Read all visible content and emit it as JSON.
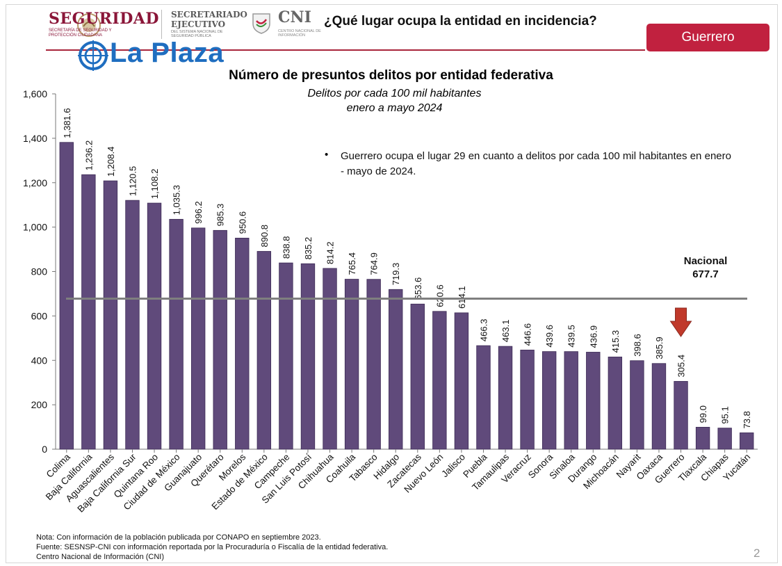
{
  "header": {
    "seguridad_title": "SEGURIDAD",
    "seguridad_subtitle": "SECRETARÍA DE SEGURIDAD Y PROTECCIÓN CIUDADANA",
    "sesnsp_title_line1": "SECRETARIADO",
    "sesnsp_title_line2": "EJECUTIVO",
    "sesnsp_subtitle": "DEL SISTEMA NACIONAL DE SEGURIDAD PÚBLICA",
    "cni_title": "CNI",
    "cni_subtitle": "CENTRO NACIONAL DE INFORMACIÓN",
    "question": "¿Qué lugar ocupa la entidad en incidencia?",
    "state_badge": "Guerrero",
    "watermark": "La Plaza",
    "accent_color": "#c1213f",
    "brand_color": "#8a1538"
  },
  "chart_data": {
    "type": "bar",
    "title": "Número de presuntos delitos por entidad federativa",
    "subtitle_line1": "Delitos por cada 100 mil habitantes",
    "subtitle_line2": "enero a mayo 2024",
    "categories": [
      "Colima",
      "Baja California",
      "Aguascalientes",
      "Baja California Sur",
      "Quintana Roo",
      "Ciudad de México",
      "Guanajuato",
      "Querétaro",
      "Morelos",
      "Estado de México",
      "Campeche",
      "San Luis Potosí",
      "Chihuahua",
      "Coahuila",
      "Tabasco",
      "Hidalgo",
      "Zacatecas",
      "Nuevo León",
      "Jalisco",
      "Puebla",
      "Tamaulipas",
      "Veracruz",
      "Sonora",
      "Sinaloa",
      "Durango",
      "Michoacán",
      "Nayarit",
      "Oaxaca",
      "Guerrero",
      "Tlaxcala",
      "Chiapas",
      "Yucatán"
    ],
    "values": [
      1381.6,
      1236.2,
      1208.4,
      1120.5,
      1108.2,
      1035.3,
      996.2,
      985.3,
      950.6,
      890.8,
      838.8,
      835.2,
      814.2,
      765.4,
      764.9,
      719.3,
      653.6,
      620.6,
      614.1,
      466.3,
      463.1,
      446.6,
      439.6,
      439.5,
      436.9,
      415.3,
      398.6,
      385.9,
      305.4,
      99.0,
      95.1,
      73.8
    ],
    "labels": [
      "1,381.6",
      "1,236.2",
      "1,208.4",
      "1,120.5",
      "1,108.2",
      "1,035.3",
      "996.2",
      "985.3",
      "950.6",
      "890.8",
      "838.8",
      "835.2",
      "814.2",
      "765.4",
      "764.9",
      "719.3",
      "653.6",
      "620.6",
      "614.1",
      "466.3",
      "463.1",
      "446.6",
      "439.6",
      "439.5",
      "436.9",
      "415.3",
      "398.6",
      "385.9",
      "305.4",
      "99.0",
      "95.1",
      "73.8"
    ],
    "ylim": [
      0,
      1600
    ],
    "yticks": [
      0,
      200,
      400,
      600,
      800,
      1000,
      1200,
      1400,
      1600
    ],
    "ytick_labels": [
      "0",
      "200",
      "400",
      "600",
      "800",
      "1,000",
      "1,200",
      "1,400",
      "1,600"
    ],
    "reference_line": {
      "label_line1": "Nacional",
      "label_line2": "677.7",
      "value": 677.7,
      "color": "#7f7f7f"
    },
    "highlight_category": "Guerrero",
    "highlight_arrow_color": "#c0392b",
    "bar_color": "#604a7b",
    "grid": false,
    "xlabel": "",
    "ylabel": ""
  },
  "annotation": {
    "bullet_text": "Guerrero ocupa el lugar 29 en cuanto a delitos por cada 100 mil habitantes en enero - mayo de 2024."
  },
  "footer": {
    "note": "Nota: Con información de la población publicada por CONAPO en septiembre 2023.",
    "source": "Fuente: SESNSP-CNI con información reportada por la Procuraduría o Fiscalía de la entidad federativa.",
    "credit": "Centro Nacional de Información (CNI)",
    "page_number": "2"
  }
}
